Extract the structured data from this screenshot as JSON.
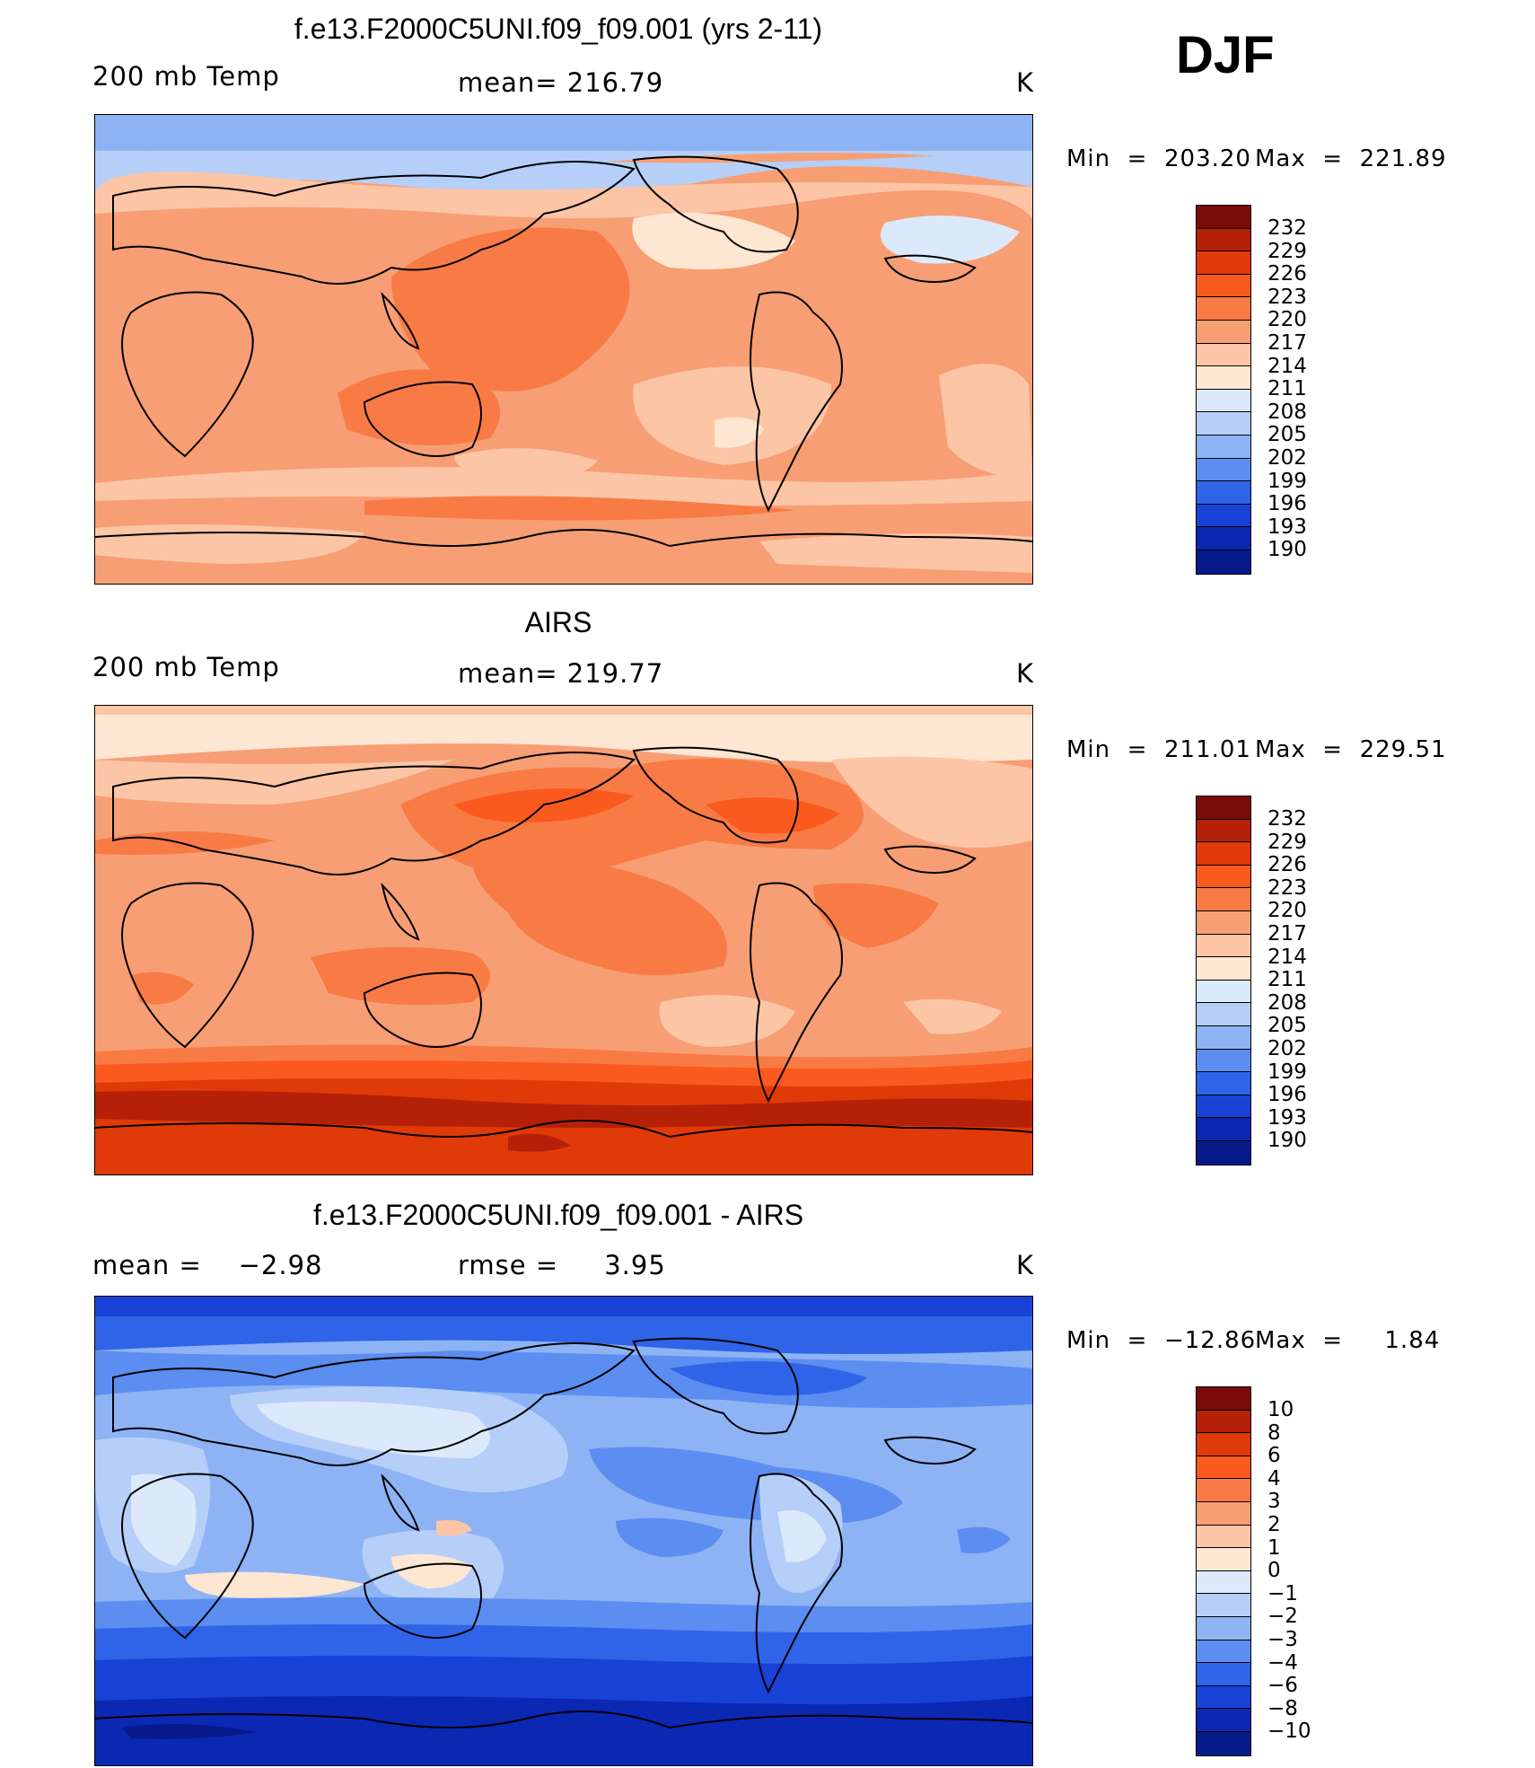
{
  "season": "DJF",
  "colors": {
    "palette_temp": [
      "#7a0a08",
      "#b52008",
      "#e03a08",
      "#fb5a1e",
      "#f87b45",
      "#f89e74",
      "#fcc5a6",
      "#fde6d2",
      "#dce9fa",
      "#b6cff8",
      "#8db3f5",
      "#5c8df0",
      "#3064e8",
      "#1842d6",
      "#0a28b2",
      "#061a8a"
    ],
    "palette_diff": [
      "#7a0a08",
      "#b52008",
      "#e03a08",
      "#fb5a1e",
      "#f87b45",
      "#f89e74",
      "#fcc5a6",
      "#fde6d2",
      "#dce9fa",
      "#b6cff8",
      "#8db3f5",
      "#5c8df0",
      "#3064e8",
      "#1842d6",
      "#0a28b2",
      "#061a8a"
    ]
  },
  "panels": [
    {
      "title": "f.e13.F2000C5UNI.f09_f09.001 (yrs 2-11)",
      "left_label": "200 mb Temp",
      "center_label": "mean= 216.79",
      "units": "K",
      "min_label": "Min  =  203.20",
      "max_label": "Max  =  221.89",
      "colorbar_labels": [
        "232",
        "229",
        "226",
        "223",
        "220",
        "217",
        "214",
        "211",
        "208",
        "205",
        "202",
        "199",
        "196",
        "193",
        "190"
      ]
    },
    {
      "title": "AIRS",
      "left_label": "200 mb Temp",
      "center_label": "mean= 219.77",
      "units": "K",
      "min_label": "Min  =  211.01",
      "max_label": "Max  =  229.51",
      "colorbar_labels": [
        "232",
        "229",
        "226",
        "223",
        "220",
        "217",
        "214",
        "211",
        "208",
        "205",
        "202",
        "199",
        "196",
        "193",
        "190"
      ]
    },
    {
      "title": "f.e13.F2000C5UNI.f09_f09.001 - AIRS",
      "left_label": "mean =    −2.98",
      "center_label": "rmse =     3.95",
      "units": "K",
      "min_label": "Min  =  −12.86",
      "max_label": "Max  =     1.84",
      "colorbar_labels": [
        "10",
        "8",
        "6",
        "4",
        "3",
        "2",
        "1",
        "0",
        "−1",
        "−2",
        "−3",
        "−4",
        "−6",
        "−8",
        "−10"
      ]
    }
  ]
}
